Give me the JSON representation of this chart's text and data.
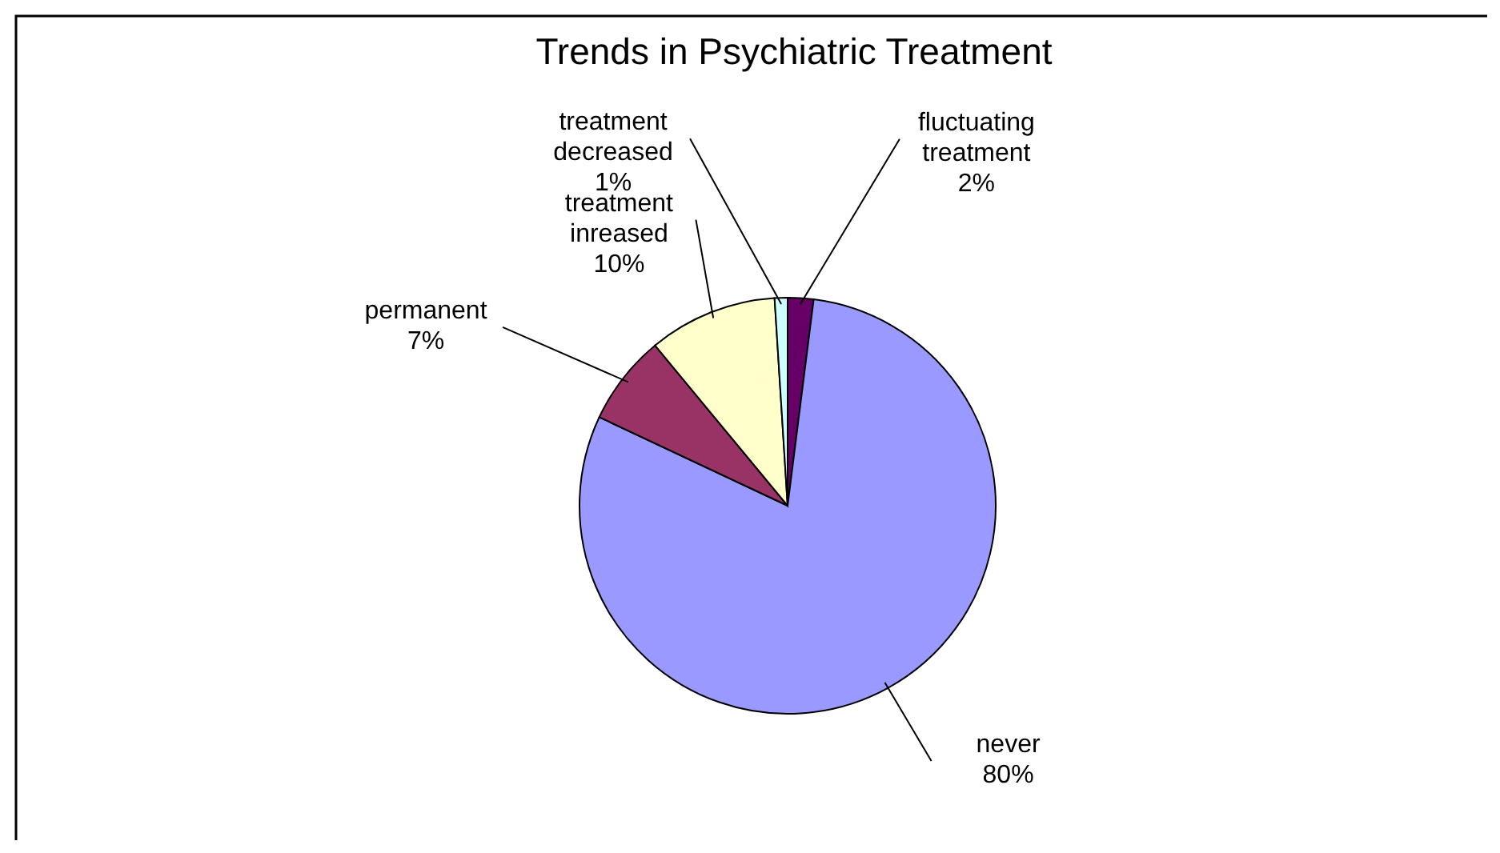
{
  "chart_data": {
    "type": "pie",
    "title": "Trends in Psychiatric Treatment",
    "categories": [
      "fluctuating treatment",
      "never",
      "permanent",
      "treatment inreased",
      "treatment decreased"
    ],
    "values": [
      2,
      80,
      7,
      10,
      1
    ],
    "value_labels": [
      "2%",
      "80%",
      "7%",
      "10%",
      "1%"
    ],
    "colors": [
      "#660066",
      "#9999ff",
      "#993366",
      "#ffffcc",
      "#ccffff"
    ]
  }
}
